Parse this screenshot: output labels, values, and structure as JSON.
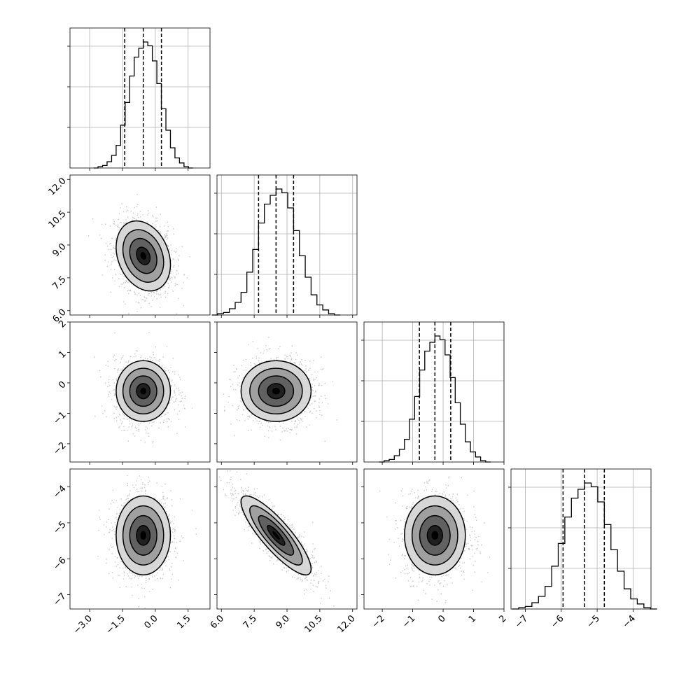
{
  "chart_data": {
    "type": "corner",
    "grid": true,
    "colors": {
      "hist": "#000000",
      "points": "#9a9a9a",
      "contour": "#000000",
      "quantile": "#000000",
      "grid": "#b0b0b0"
    },
    "params": [
      {
        "range": [
          -3.9,
          2.5
        ],
        "ticks": [
          "−3.0",
          "−1.5",
          "0.0",
          "1.5"
        ],
        "tick_values": [
          -3.0,
          -1.5,
          0.0,
          1.5
        ],
        "mean": -0.55,
        "sd": 0.62,
        "quantiles": [
          -1.4,
          -0.55,
          0.28
        ],
        "hist_counts": [
          0,
          1,
          2,
          5,
          10,
          18,
          34,
          52,
          73,
          88,
          95,
          100,
          97,
          85,
          67,
          47,
          30,
          16,
          8,
          4,
          1,
          0
        ]
      },
      {
        "range": [
          5.8,
          12.2
        ],
        "ticks": [
          "6.0",
          "7.5",
          "9.0",
          "10.5",
          "12.0"
        ],
        "tick_values": [
          6.0,
          7.5,
          9.0,
          10.5,
          12.0
        ],
        "mean": 8.5,
        "sd": 0.8,
        "quantiles": [
          7.7,
          8.5,
          9.3
        ],
        "hist_counts": [
          0,
          1,
          2,
          5,
          10,
          18,
          34,
          52,
          73,
          88,
          95,
          100,
          97,
          85,
          67,
          47,
          30,
          16,
          8,
          4,
          1,
          0
        ]
      },
      {
        "range": [
          -2.6,
          2.0
        ],
        "ticks": [
          "−2",
          "−1",
          "0",
          "1",
          "2"
        ],
        "tick_values": [
          -2,
          -1,
          0,
          1,
          2
        ],
        "mean": -0.27,
        "sd": 0.5,
        "quantiles": [
          -0.78,
          -0.27,
          0.25
        ],
        "hist_counts": [
          0,
          1,
          2,
          5,
          10,
          18,
          34,
          52,
          73,
          88,
          95,
          100,
          97,
          85,
          67,
          47,
          30,
          16,
          8,
          4,
          1,
          0
        ]
      },
      {
        "range": [
          -7.4,
          -3.5
        ],
        "ticks": [
          "−7",
          "−6",
          "−5",
          "−4"
        ],
        "tick_values": [
          -7,
          -6,
          -5,
          -4
        ],
        "mean": -5.35,
        "sd": 0.55,
        "quantiles": [
          -5.95,
          -5.35,
          -4.8
        ],
        "hist_counts": [
          0,
          1,
          2,
          5,
          10,
          18,
          34,
          52,
          73,
          88,
          95,
          100,
          97,
          85,
          67,
          47,
          30,
          16,
          8,
          4,
          1,
          0
        ]
      }
    ],
    "correlations": [
      {
        "row": 1,
        "col": 0,
        "r": -0.25
      },
      {
        "row": 2,
        "col": 0,
        "r": 0.0
      },
      {
        "row": 2,
        "col": 1,
        "r": 0.0
      },
      {
        "row": 3,
        "col": 0,
        "r": 0.0
      },
      {
        "row": 3,
        "col": 1,
        "r": -0.85
      },
      {
        "row": 3,
        "col": 2,
        "r": 0.0
      }
    ],
    "contour_levels_sigma": [
      0.5,
      1.0,
      1.5,
      2.0
    ]
  }
}
